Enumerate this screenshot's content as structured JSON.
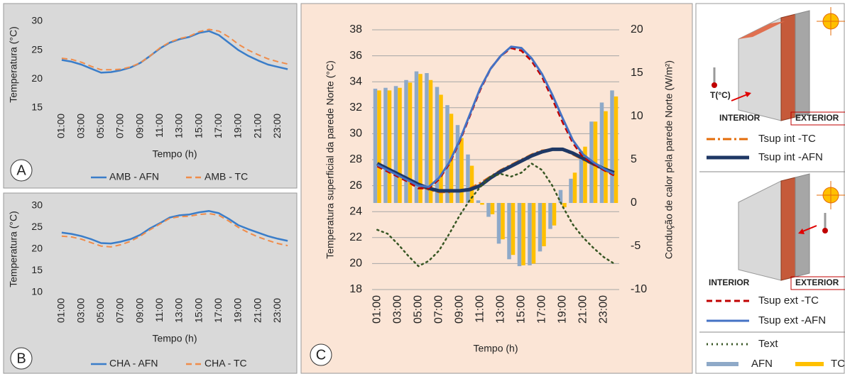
{
  "chart_data": [
    {
      "type": "line",
      "panel_label": "A",
      "y_label": "Temperatura (°C)",
      "x_label": "Tempo (h)",
      "categories": [
        "01:00",
        null,
        "03:00",
        null,
        "05:00",
        null,
        "07:00",
        null,
        "09:00",
        null,
        "11:00",
        null,
        "13:00",
        null,
        "15:00",
        null,
        "17:00",
        null,
        "19:00",
        null,
        "21:00",
        null,
        "23:00",
        null
      ],
      "ylim": [
        15,
        30
      ],
      "yticks": [
        15,
        20,
        25,
        30
      ],
      "grid": false,
      "series": [
        {
          "name": "AMB - AFN",
          "color": "#3a7dc9",
          "dash": "solid",
          "values": [
            23.3,
            23.0,
            22.5,
            21.8,
            21.1,
            21.2,
            21.5,
            22.0,
            22.8,
            24.0,
            25.3,
            26.3,
            26.9,
            27.3,
            28.0,
            28.3,
            27.6,
            26.3,
            25.0,
            24.0,
            23.2,
            22.5,
            22.1,
            21.7
          ]
        },
        {
          "name": "AMB - TC",
          "color": "#f08c4a",
          "dash": "dashed",
          "values": [
            23.6,
            23.4,
            22.9,
            22.2,
            21.6,
            21.6,
            21.7,
            22.1,
            22.8,
            24.0,
            25.4,
            26.4,
            27.0,
            27.4,
            28.2,
            28.6,
            28.3,
            27.3,
            26.0,
            25.0,
            24.2,
            23.5,
            23.0,
            22.6
          ]
        }
      ]
    },
    {
      "type": "line",
      "panel_label": "B",
      "y_label": "Temperatura (°C)",
      "x_label": "Tempo (h)",
      "categories": [
        "01:00",
        null,
        "03:00",
        null,
        "05:00",
        null,
        "07:00",
        null,
        "09:00",
        null,
        "11:00",
        null,
        "13:00",
        null,
        "15:00",
        null,
        "17:00",
        null,
        "19:00",
        null,
        "21:00",
        null,
        "23:00",
        null
      ],
      "ylim": [
        10,
        30
      ],
      "yticks": [
        10,
        15,
        20,
        25,
        30
      ],
      "grid": false,
      "series": [
        {
          "name": "CHA - AFN",
          "color": "#3a7dc9",
          "dash": "solid",
          "values": [
            23.8,
            23.5,
            23.0,
            22.3,
            21.4,
            21.3,
            21.7,
            22.3,
            23.3,
            24.8,
            26.0,
            27.3,
            27.8,
            28.0,
            28.5,
            28.8,
            28.3,
            27.0,
            25.5,
            24.6,
            23.8,
            23.0,
            22.4,
            21.9
          ]
        },
        {
          "name": "CHA - TC",
          "color": "#f08c4a",
          "dash": "dashed",
          "values": [
            23.0,
            22.8,
            22.3,
            21.5,
            20.7,
            20.5,
            21.0,
            21.8,
            23.0,
            24.5,
            25.8,
            27.1,
            27.5,
            27.6,
            28.0,
            28.2,
            27.8,
            26.5,
            25.0,
            23.8,
            22.8,
            22.0,
            21.3,
            20.8
          ]
        }
      ]
    },
    {
      "type": "combo",
      "panel_label": "C",
      "y_label": "Temperatura superficial da parede Norte (°C)",
      "y2_label": "Condução de calor pela parede Norte (W/m²)",
      "x_label": "Tempo (h)",
      "categories": [
        "01:00",
        null,
        "03:00",
        null,
        "05:00",
        null,
        "07:00",
        null,
        "09:00",
        null,
        "11:00",
        null,
        "13:00",
        null,
        "15:00",
        null,
        "17:00",
        null,
        "19:00",
        null,
        "21:00",
        null,
        "23:00",
        null
      ],
      "ylim": [
        18,
        38
      ],
      "yticks": [
        18,
        20,
        22,
        24,
        26,
        28,
        30,
        32,
        34,
        36,
        38
      ],
      "y2lim": [
        -10,
        20
      ],
      "y2ticks": [
        -10,
        -5,
        0,
        5,
        10,
        15,
        20
      ],
      "grid": true,
      "series": [
        {
          "name": "Tsup int -TC",
          "kind": "line",
          "color": "#e46c0a",
          "dash": "dashdot",
          "values": [
            27.6,
            27.2,
            26.8,
            26.4,
            26.0,
            25.7,
            25.5,
            25.5,
            25.6,
            25.8,
            26.2,
            26.7,
            27.2,
            27.6,
            28.0,
            28.4,
            28.7,
            28.8,
            28.8,
            28.4,
            28.0,
            27.6,
            27.2,
            26.9
          ]
        },
        {
          "name": "Tsup int -AFN",
          "kind": "line",
          "color": "#1f3864",
          "dash": "solid",
          "values": [
            27.7,
            27.3,
            26.9,
            26.5,
            26.1,
            25.8,
            25.6,
            25.6,
            25.6,
            25.7,
            26.0,
            26.6,
            27.1,
            27.5,
            27.9,
            28.3,
            28.6,
            28.8,
            28.8,
            28.5,
            28.1,
            27.7,
            27.3,
            27.0
          ]
        },
        {
          "name": "Tsup ext -TC",
          "kind": "line",
          "color": "#c00000",
          "dash": "dashed",
          "values": [
            27.5,
            27.1,
            26.7,
            26.3,
            25.8,
            25.8,
            26.5,
            27.7,
            29.4,
            31.4,
            33.4,
            35.0,
            36.0,
            36.6,
            36.4,
            35.6,
            34.4,
            32.7,
            30.9,
            29.3,
            28.2,
            27.7,
            27.2,
            26.8
          ]
        },
        {
          "name": "Tsup ext -AFN",
          "kind": "line",
          "color": "#4472c4",
          "dash": "solid",
          "values": [
            27.6,
            27.2,
            26.8,
            26.4,
            26.0,
            25.9,
            26.6,
            27.8,
            29.5,
            31.5,
            33.5,
            35.0,
            36.0,
            36.7,
            36.6,
            35.8,
            34.6,
            33.0,
            31.2,
            29.5,
            28.4,
            27.8,
            27.3,
            26.9
          ]
        },
        {
          "name": "Text",
          "kind": "line",
          "color": "#375623",
          "dash": "dotted",
          "values": [
            22.6,
            22.3,
            21.5,
            20.6,
            19.8,
            20.2,
            21.0,
            22.3,
            23.7,
            24.9,
            25.9,
            26.7,
            26.9,
            26.7,
            27.0,
            27.7,
            27.2,
            26.0,
            24.4,
            23.0,
            22.0,
            21.2,
            20.5,
            20.0
          ]
        },
        {
          "name": "AFN",
          "kind": "bar",
          "axis": "y2",
          "color": "#8ea9c8",
          "values": [
            13.2,
            13.3,
            13.5,
            14.2,
            15.2,
            15.0,
            13.4,
            11.3,
            9.0,
            5.6,
            0.3,
            -1.6,
            -4.7,
            -6.5,
            -7.3,
            -7.2,
            -5.6,
            -3.0,
            1.5,
            2.8,
            6.0,
            9.4,
            11.6,
            13.0
          ]
        },
        {
          "name": "TC",
          "kind": "bar",
          "axis": "y2",
          "color": "#ffc000",
          "values": [
            13.0,
            13.0,
            13.3,
            13.9,
            14.9,
            14.2,
            12.5,
            10.3,
            7.5,
            4.3,
            -0.2,
            -1.3,
            -4.2,
            -6.0,
            -7.2,
            -7.0,
            -5.0,
            -2.6,
            -0.5,
            3.5,
            6.5,
            9.4,
            10.6,
            12.3
          ]
        }
      ]
    }
  ],
  "diagrams": [
    {
      "labels": [
        "T(°C)",
        "INTERIOR",
        "EXTERIOR"
      ]
    },
    {
      "labels": [
        "INTERIOR",
        "EXTERIOR"
      ]
    }
  ]
}
